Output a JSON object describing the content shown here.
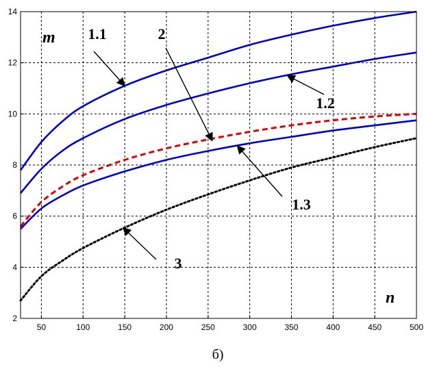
{
  "chart_data": {
    "type": "line",
    "xlim": [
      25,
      500
    ],
    "ylim": [
      2,
      14
    ],
    "xticks": [
      50,
      100,
      150,
      200,
      250,
      300,
      350,
      400,
      450,
      500
    ],
    "yticks": [
      2,
      4,
      6,
      8,
      10,
      12,
      14
    ],
    "grid": true,
    "xlabel": "n",
    "ylabel": "m",
    "caption": "б)",
    "series": [
      {
        "name": "1.1",
        "color": "#0000cc",
        "style": "solid",
        "x": [
          25,
          50,
          75,
          100,
          150,
          200,
          250,
          300,
          350,
          400,
          450,
          500
        ],
        "y": [
          7.8,
          8.9,
          9.7,
          10.3,
          11.1,
          11.7,
          12.2,
          12.7,
          13.1,
          13.45,
          13.75,
          14.0
        ]
      },
      {
        "name": "1.2",
        "color": "#0000cc",
        "style": "solid",
        "x": [
          25,
          50,
          75,
          100,
          150,
          200,
          250,
          300,
          350,
          400,
          450,
          500
        ],
        "y": [
          6.9,
          7.85,
          8.55,
          9.05,
          9.8,
          10.35,
          10.8,
          11.2,
          11.55,
          11.85,
          12.15,
          12.4
        ]
      },
      {
        "name": "2",
        "color": "#e00000",
        "style": "dashed",
        "x": [
          25,
          50,
          75,
          100,
          150,
          200,
          250,
          300,
          350,
          400,
          450,
          500
        ],
        "y": [
          5.6,
          6.55,
          7.15,
          7.6,
          8.2,
          8.65,
          9.0,
          9.3,
          9.55,
          9.75,
          9.9,
          10.0
        ]
      },
      {
        "name": "1.3",
        "color": "#0000cc",
        "style": "solid",
        "x": [
          25,
          50,
          75,
          100,
          150,
          200,
          250,
          300,
          350,
          400,
          450,
          500
        ],
        "y": [
          5.5,
          6.3,
          6.8,
          7.2,
          7.75,
          8.2,
          8.55,
          8.85,
          9.1,
          9.35,
          9.55,
          9.75
        ]
      },
      {
        "name": "3",
        "color": "#000000",
        "style": "dotted",
        "x": [
          25,
          50,
          75,
          100,
          150,
          200,
          250,
          300,
          350,
          400,
          450,
          500
        ],
        "y": [
          2.7,
          3.65,
          4.25,
          4.75,
          5.55,
          6.25,
          6.85,
          7.4,
          7.9,
          8.3,
          8.7,
          9.05
        ]
      }
    ],
    "annotations": [
      {
        "label": "1.1",
        "target": [
          150,
          11.1
        ]
      },
      {
        "label": "2",
        "target": [
          255,
          8.95
        ]
      },
      {
        "label": "1.2",
        "target": [
          345,
          11.5
        ]
      },
      {
        "label": "1.3",
        "target": [
          285,
          8.75
        ]
      },
      {
        "label": "3",
        "target": [
          148,
          5.55
        ]
      }
    ]
  }
}
